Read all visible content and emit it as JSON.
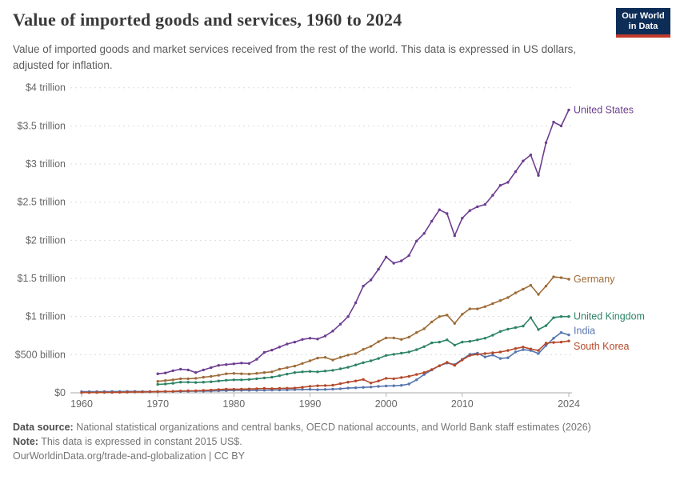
{
  "header": {
    "title": "Value of imported goods and services, 1960 to 2024",
    "subtitle": "Value of imported goods and market services received from the rest of the world. This data is expressed in US dollars, adjusted for inflation.",
    "logo": {
      "line1": "Our World",
      "line2": "in Data",
      "bg_color": "#0d2d57",
      "stripe_color": "#c0392b"
    }
  },
  "chart_data": {
    "type": "line",
    "title": "Value of imported goods and services, 1960 to 2024",
    "unit": "constant 2015 US$ (billions)",
    "grid": "horizontal dashed",
    "legend_position": "right-of-line-ends",
    "xlim": [
      1960,
      2024
    ],
    "ylim": [
      0,
      4000
    ],
    "y_axis": {
      "values": [
        0,
        500,
        1000,
        1500,
        2000,
        2500,
        3000,
        3500,
        4000
      ],
      "labels": [
        "$0",
        "$500 billion",
        "$1 trillion",
        "$1.5 trillion",
        "$2 trillion",
        "$2.5 trillion",
        "$3 trillion",
        "$3.5 trillion",
        "$4 trillion"
      ]
    },
    "x_axis": {
      "tick_years": [
        1960,
        1970,
        1980,
        1990,
        2000,
        2010,
        2024
      ],
      "tick_labels": [
        "1960",
        "1970",
        "1980",
        "1990",
        "2000",
        "2010",
        "2024"
      ]
    },
    "series": [
      {
        "name": "United States",
        "color": "#6D3E91",
        "start_year": 1970,
        "values": [
          250,
          260,
          290,
          310,
          300,
          265,
          300,
          330,
          360,
          370,
          380,
          390,
          385,
          440,
          530,
          560,
          600,
          640,
          665,
          700,
          715,
          705,
          745,
          810,
          900,
          1000,
          1180,
          1400,
          1480,
          1620,
          1780,
          1700,
          1730,
          1800,
          1990,
          2090,
          2250,
          2400,
          2350,
          2060,
          2290,
          2390,
          2440,
          2470,
          2590,
          2720,
          2760,
          2900,
          3040,
          3120,
          2850,
          3280,
          3550,
          3500,
          3710
        ]
      },
      {
        "name": "Germany",
        "color": "#9E6C39",
        "start_year": 1970,
        "values": [
          150,
          160,
          170,
          185,
          185,
          190,
          205,
          215,
          230,
          250,
          255,
          250,
          245,
          255,
          265,
          275,
          310,
          330,
          350,
          385,
          420,
          455,
          465,
          430,
          465,
          495,
          515,
          570,
          610,
          670,
          720,
          720,
          700,
          730,
          790,
          840,
          930,
          1000,
          1020,
          910,
          1030,
          1100,
          1100,
          1130,
          1170,
          1210,
          1250,
          1310,
          1360,
          1410,
          1290,
          1400,
          1520,
          1510,
          1490
        ]
      },
      {
        "name": "United Kingdom",
        "color": "#2C8465",
        "start_year": 1970,
        "values": [
          110,
          115,
          125,
          140,
          140,
          135,
          140,
          145,
          155,
          165,
          170,
          170,
          175,
          185,
          195,
          205,
          225,
          245,
          265,
          275,
          280,
          275,
          285,
          295,
          315,
          335,
          365,
          395,
          420,
          450,
          490,
          505,
          520,
          535,
          565,
          605,
          655,
          665,
          695,
          625,
          665,
          675,
          695,
          715,
          755,
          805,
          835,
          855,
          875,
          985,
          830,
          880,
          985,
          1000,
          1000
        ]
      },
      {
        "name": "India",
        "color": "#5676AF",
        "start_year": 1960,
        "values": [
          15,
          15,
          15,
          16,
          17,
          17,
          18,
          18,
          17,
          17,
          17,
          18,
          18,
          19,
          20,
          21,
          21,
          23,
          26,
          28,
          31,
          32,
          32,
          33,
          34,
          36,
          37,
          38,
          41,
          44,
          45,
          41,
          44,
          48,
          53,
          62,
          66,
          71,
          76,
          84,
          90,
          92,
          98,
          115,
          170,
          240,
          300,
          355,
          390,
          370,
          440,
          505,
          520,
          470,
          495,
          450,
          460,
          535,
          565,
          555,
          515,
          620,
          715,
          790,
          760
        ]
      },
      {
        "name": "South Korea",
        "color": "#B5492A",
        "start_year": 1960,
        "values": [
          3,
          3,
          4,
          5,
          5,
          6,
          8,
          10,
          12,
          14,
          16,
          18,
          19,
          24,
          26,
          27,
          31,
          36,
          43,
          48,
          46,
          48,
          50,
          54,
          58,
          55,
          58,
          60,
          62,
          72,
          85,
          92,
          95,
          100,
          120,
          140,
          155,
          175,
          128,
          155,
          190,
          185,
          200,
          215,
          240,
          265,
          305,
          355,
          400,
          360,
          430,
          490,
          505,
          515,
          525,
          535,
          555,
          580,
          600,
          575,
          555,
          650,
          660,
          665,
          680
        ]
      }
    ]
  },
  "footer": {
    "data_source_label": "Data source:",
    "data_source_text": " National statistical organizations and central banks, OECD national accounts, and World Bank staff estimates (2026)",
    "note_label": "Note:",
    "note_text": " This data is expressed in constant 2015 US$.",
    "link": "OurWorldinData.org/trade-and-globalization | CC BY"
  }
}
